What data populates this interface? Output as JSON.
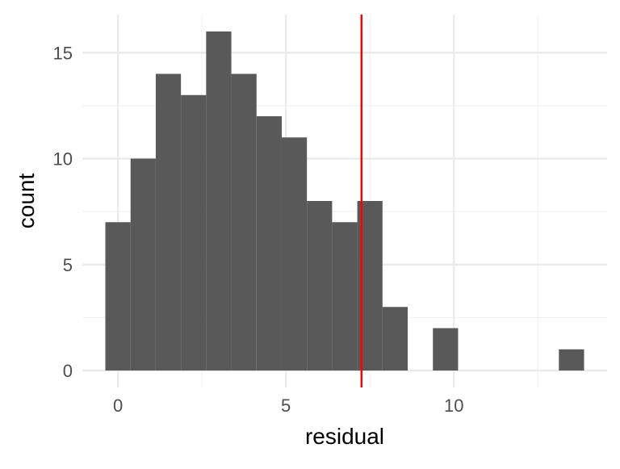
{
  "chart_data": {
    "type": "bar",
    "subtype": "histogram",
    "title": "",
    "xlabel": "residual",
    "ylabel": "count",
    "bin_width": 0.75,
    "bins": [
      {
        "x_start": -0.375,
        "x_end": 0.375,
        "count": 7
      },
      {
        "x_start": 0.375,
        "x_end": 1.125,
        "count": 10
      },
      {
        "x_start": 1.125,
        "x_end": 1.875,
        "count": 14
      },
      {
        "x_start": 1.875,
        "x_end": 2.625,
        "count": 13
      },
      {
        "x_start": 2.625,
        "x_end": 3.375,
        "count": 16
      },
      {
        "x_start": 3.375,
        "x_end": 4.125,
        "count": 14
      },
      {
        "x_start": 4.125,
        "x_end": 4.875,
        "count": 12
      },
      {
        "x_start": 4.875,
        "x_end": 5.625,
        "count": 11
      },
      {
        "x_start": 5.625,
        "x_end": 6.375,
        "count": 8
      },
      {
        "x_start": 6.375,
        "x_end": 7.125,
        "count": 7
      },
      {
        "x_start": 7.125,
        "x_end": 7.875,
        "count": 8
      },
      {
        "x_start": 7.875,
        "x_end": 8.625,
        "count": 3
      },
      {
        "x_start": 8.625,
        "x_end": 9.375,
        "count": 0
      },
      {
        "x_start": 9.375,
        "x_end": 10.125,
        "count": 2
      },
      {
        "x_start": 10.125,
        "x_end": 10.875,
        "count": 0
      },
      {
        "x_start": 10.875,
        "x_end": 11.625,
        "count": 0
      },
      {
        "x_start": 11.625,
        "x_end": 12.375,
        "count": 0
      },
      {
        "x_start": 12.375,
        "x_end": 13.125,
        "count": 0
      },
      {
        "x_start": 13.125,
        "x_end": 13.875,
        "count": 1
      }
    ],
    "xlim": [
      -1.06,
      14.56
    ],
    "ylim": [
      -0.8,
      16.8
    ],
    "x_ticks": [
      0,
      5,
      10
    ],
    "x_tick_labels": [
      "0",
      "5",
      "10"
    ],
    "x_minor_ticks": [
      2.5,
      7.5,
      12.5
    ],
    "y_ticks": [
      0,
      5,
      10,
      15
    ],
    "y_tick_labels": [
      "0",
      "5",
      "10",
      "15"
    ],
    "y_minor_ticks": [
      2.5,
      7.5,
      12.5
    ],
    "vline": {
      "x": 7.25,
      "color": "#ff0000"
    },
    "grid": true,
    "legend": "none",
    "colors": {
      "bar": "#595959",
      "grid_major": "#ebebeb",
      "grid_minor": "#f2f2f2",
      "vline": "#ff0000"
    }
  }
}
